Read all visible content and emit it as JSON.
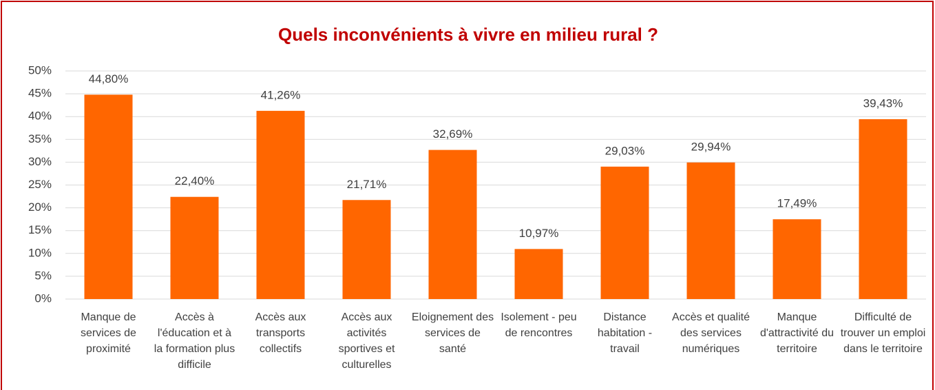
{
  "chart_data": {
    "type": "bar",
    "title": "Quels inconvénients à vivre en milieu rural ?",
    "categories": [
      "Manque de services de proximité",
      "Accès à l'éducation et à la formation plus difficile",
      "Accès aux transports collectifs",
      "Accès aux activités sportives et culturelles",
      "Eloignement des services de santé",
      "Isolement - peu de rencontres",
      "Distance habitation - travail",
      "Accès et qualité des services numériques",
      "Manque d'attractivité du territoire",
      "Difficulté de trouver un emploi dans le territoire"
    ],
    "values": [
      44.8,
      22.4,
      41.26,
      21.71,
      32.69,
      10.97,
      29.03,
      29.94,
      17.49,
      39.43
    ],
    "value_labels": [
      "44,80%",
      "22,40%",
      "41,26%",
      "21,71%",
      "32,69%",
      "10,97%",
      "29,03%",
      "29,94%",
      "17,49%",
      "39,43%"
    ],
    "color": "#ff6600",
    "ylim": [
      0,
      50
    ],
    "yticks": [
      {
        "value": 0,
        "label": "0%"
      },
      {
        "value": 5,
        "label": "5%"
      },
      {
        "value": 10,
        "label": "10%"
      },
      {
        "value": 15,
        "label": "15%"
      },
      {
        "value": 20,
        "label": "20%"
      },
      {
        "value": 25,
        "label": "25%"
      },
      {
        "value": 30,
        "label": "30%"
      },
      {
        "value": 35,
        "label": "35%"
      },
      {
        "value": 40,
        "label": "40%"
      },
      {
        "value": 45,
        "label": "45%"
      },
      {
        "value": 50,
        "label": "50%"
      }
    ],
    "grid": true
  }
}
